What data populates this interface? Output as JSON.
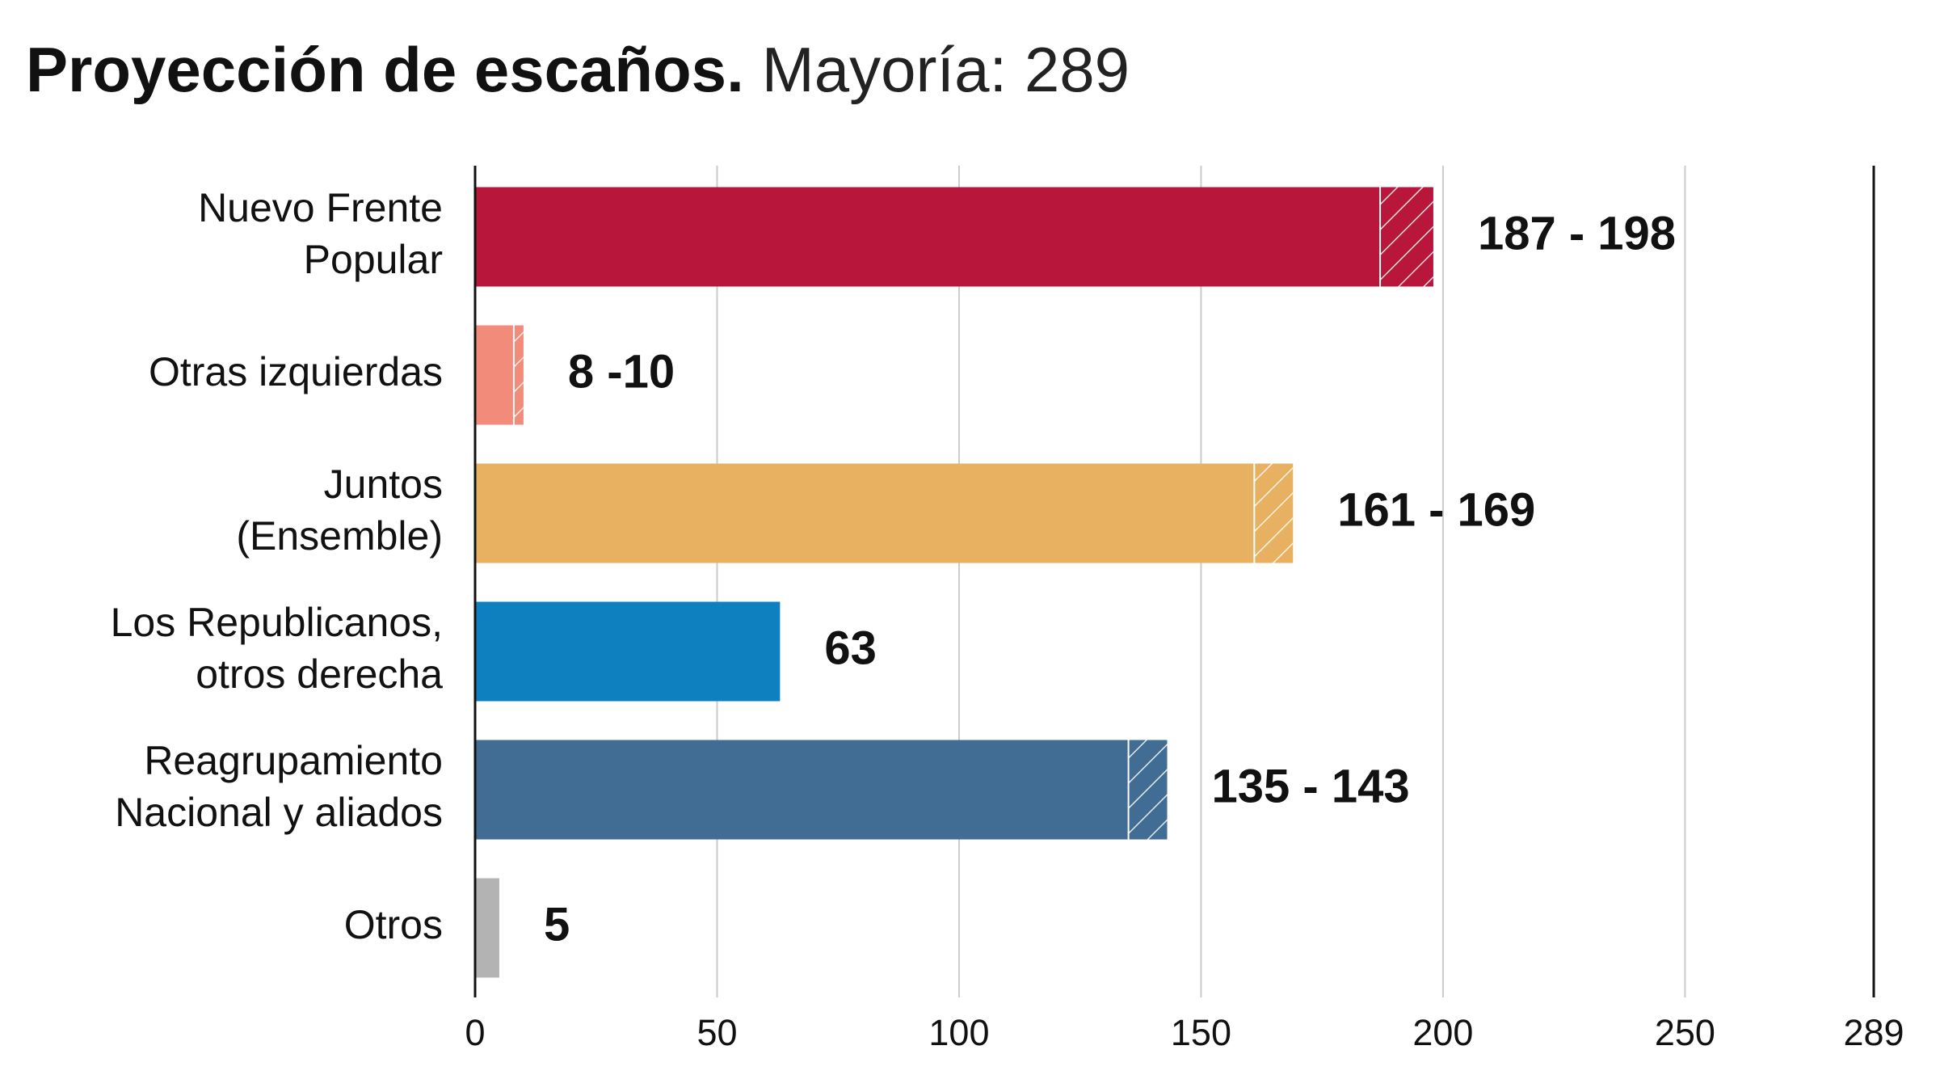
{
  "chart_data": {
    "type": "range_bar",
    "title": "Proyección de escaños.",
    "subtitle": "Mayoría: 289",
    "categories": [
      [
        "Nuevo Frente",
        "Popular"
      ],
      [
        "Otras izquierdas"
      ],
      [
        "Juntos",
        "(Ensemble)"
      ],
      [
        "Los Republicanos,",
        "otros derecha"
      ],
      [
        "Reagrupamiento",
        "Nacional y aliados"
      ],
      [
        "Otros"
      ]
    ],
    "colors": [
      "#b8163a",
      "#f28b79",
      "#e8b162",
      "#0e80c0",
      "#416d95",
      "#b3b3b3"
    ],
    "series": [
      {
        "name": "low",
        "values": [
          187,
          8,
          161,
          63,
          135,
          5
        ]
      },
      {
        "name": "high",
        "values": [
          198,
          10,
          169,
          null,
          143,
          null
        ]
      }
    ],
    "value_labels": [
      "187 - 198",
      "8 -10",
      "161 - 169",
      "63",
      "135 - 143",
      "5"
    ],
    "xlim": [
      0,
      289
    ],
    "xticks": [
      0,
      50,
      100,
      150,
      200,
      250,
      289
    ],
    "grid": true
  }
}
